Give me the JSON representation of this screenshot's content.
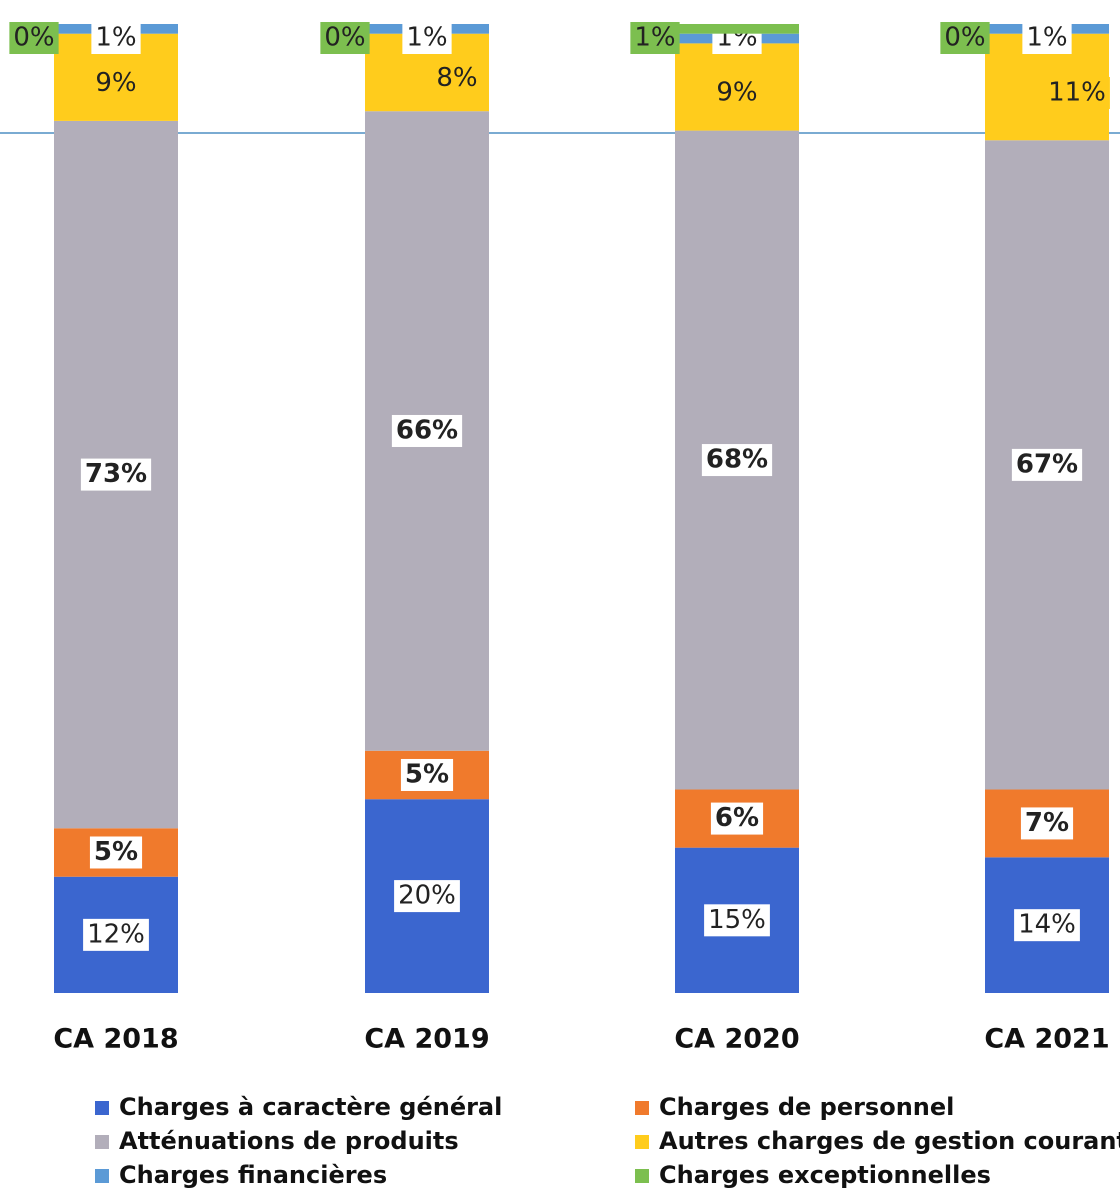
{
  "chart_data": {
    "type": "stacked_bar",
    "categories": [
      "CA 2018",
      "CA 2019",
      "CA 2020",
      "CA 2021"
    ],
    "series": [
      {
        "name": "Charges à caractère général",
        "color": "#3b66cf",
        "values": [
          12,
          20,
          15,
          14
        ],
        "value_labels": [
          "12%",
          "20%",
          "15%",
          "14%"
        ]
      },
      {
        "name": "Charges de personnel",
        "color": "#f07a2c",
        "values": [
          5,
          5,
          6,
          7
        ],
        "value_labels": [
          "5%",
          "5%",
          "6%",
          "7%"
        ]
      },
      {
        "name": "Atténuations de produits",
        "color": "#b2aeba",
        "values": [
          73,
          66,
          68,
          67
        ],
        "value_labels": [
          "73%",
          "66%",
          "68%",
          "67%"
        ]
      },
      {
        "name": "Autres charges de gestion courante",
        "color": "#ffcc1c",
        "values": [
          9,
          8,
          9,
          11
        ],
        "value_labels": [
          "9%",
          "8%",
          "9%",
          "11%"
        ]
      },
      {
        "name": "Charges financières",
        "color": "#5b9ad6",
        "values": [
          1,
          1,
          1,
          1
        ],
        "value_labels": [
          "1%",
          "1%",
          "1%",
          "1%"
        ]
      },
      {
        "name": "Charges exceptionnelles",
        "color": "#7cbf4f",
        "values": [
          0,
          0,
          1,
          0
        ],
        "value_labels": [
          "0%",
          "0%",
          "1%",
          "0%"
        ]
      }
    ]
  }
}
